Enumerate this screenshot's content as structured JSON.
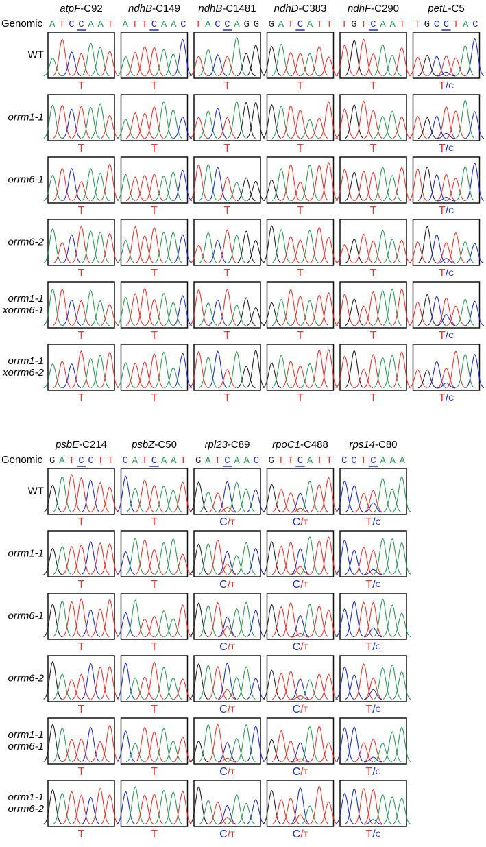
{
  "panels": [
    {
      "genomic_label": "Genomic",
      "columns": [
        {
          "gene": "atpF",
          "site": "-C92",
          "sequence": "ATCCAAT"
        },
        {
          "gene": "ndhB",
          "site": "-C149",
          "sequence": "ATTCAAC"
        },
        {
          "gene": "ndhB",
          "site": "-C1481",
          "sequence": "TACCAGG"
        },
        {
          "gene": "ndhD",
          "site": "-C383",
          "sequence": "GATCATT"
        },
        {
          "gene": "ndhF",
          "site": "-C290",
          "sequence": "TGTCAAT"
        },
        {
          "gene": "petL",
          "site": "-C5",
          "sequence": "TGCCTAC"
        }
      ],
      "rows": [
        {
          "label": [
            "WT"
          ],
          "calls": [
            "T",
            "T",
            "T",
            "T",
            "T",
            "T/C"
          ]
        },
        {
          "label": [
            "orrm1-1"
          ],
          "calls": [
            "T",
            "T",
            "T",
            "T",
            "T",
            "T/C"
          ]
        },
        {
          "label": [
            "orrm6-1"
          ],
          "calls": [
            "T",
            "T",
            "T",
            "T",
            "T",
            "T/C"
          ]
        },
        {
          "label": [
            "orrm6-2"
          ],
          "calls": [
            "T",
            "T",
            "T",
            "T",
            "T",
            "T/C"
          ]
        },
        {
          "label": [
            "orrm1-1",
            "xorrm6-1"
          ],
          "calls": [
            "T",
            "T",
            "T",
            "T",
            "T",
            "T/C"
          ]
        },
        {
          "label": [
            "orrm1-1",
            "xorrm6-2"
          ],
          "calls": [
            "T",
            "T",
            "T",
            "T",
            "T",
            "T/C"
          ]
        }
      ]
    },
    {
      "genomic_label": "Genomic",
      "columns": [
        {
          "gene": "psbE",
          "site": "-C214",
          "sequence": "GATCCTT"
        },
        {
          "gene": "psbZ",
          "site": "-C50",
          "sequence": "CATCAAT"
        },
        {
          "gene": "rpl23",
          "site": "-C89",
          "sequence": "GATCAAC"
        },
        {
          "gene": "rpoC1",
          "site": "-C488",
          "sequence": "GTTCATT"
        },
        {
          "gene": "rps14",
          "site": "-C80",
          "sequence": "CCTCAAA"
        }
      ],
      "rows": [
        {
          "label": [
            "WT"
          ],
          "calls": [
            "T",
            "T",
            "C/T",
            "C/T",
            "T/C"
          ]
        },
        {
          "label": [
            "orrm1-1"
          ],
          "calls": [
            "T",
            "T",
            "C/T",
            "C/T",
            "T/C"
          ]
        },
        {
          "label": [
            "orrm6-1"
          ],
          "calls": [
            "T",
            "T",
            "C/T",
            "C/T",
            "T/C"
          ]
        },
        {
          "label": [
            "orrm6-2"
          ],
          "calls": [
            "T",
            "T",
            "C/T",
            "C/T",
            "T/C"
          ]
        },
        {
          "label": [
            "orrm1-1",
            "orrm6-1"
          ],
          "calls": [
            "T",
            "T",
            "C/T",
            "C/T",
            "T/C"
          ]
        },
        {
          "label": [
            "orrm1-1",
            "orrm6-2"
          ],
          "calls": [
            "T",
            "T",
            "C/T",
            "C/T",
            "T/C"
          ]
        }
      ]
    }
  ]
}
